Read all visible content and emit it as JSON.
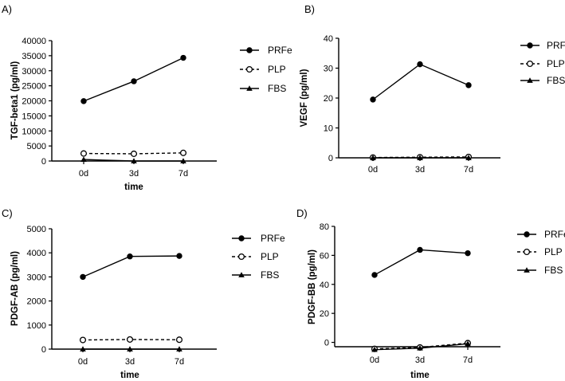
{
  "chart_data": [
    {
      "panel": "A)",
      "type": "line",
      "ylabel": "TGF-beta1 (pg/ml)",
      "xlabel": "time",
      "categories": [
        "0d",
        "3d",
        "7d"
      ],
      "ylim": [
        0,
        40000
      ],
      "yticks": [
        0,
        5000,
        10000,
        15000,
        20000,
        25000,
        30000,
        35000,
        40000
      ],
      "series": [
        {
          "name": "PRFe",
          "values": [
            19900,
            26500,
            34300
          ]
        },
        {
          "name": "PLP",
          "values": [
            2500,
            2400,
            2700
          ]
        },
        {
          "name": "FBS",
          "values": [
            500,
            0,
            0
          ]
        }
      ]
    },
    {
      "panel": "B)",
      "type": "line",
      "ylabel": "VEGF (pg/ml)",
      "xlabel": "",
      "categories": [
        "0d",
        "3d",
        "7d"
      ],
      "ylim": [
        0,
        40
      ],
      "yticks": [
        0,
        10,
        20,
        30,
        40
      ],
      "series": [
        {
          "name": "PRFe",
          "values": [
            19.5,
            31.3,
            24.3
          ]
        },
        {
          "name": "PLP",
          "values": [
            0.1,
            0.2,
            0.3
          ]
        },
        {
          "name": "FBS",
          "values": [
            0,
            0,
            0
          ]
        }
      ]
    },
    {
      "panel": "C)",
      "type": "line",
      "ylabel": "PDGF-AB (pg/ml)",
      "xlabel": "time",
      "categories": [
        "0d",
        "3d",
        "7d"
      ],
      "ylim": [
        0,
        5000
      ],
      "yticks": [
        0,
        1000,
        2000,
        3000,
        4000,
        5000
      ],
      "series": [
        {
          "name": "PRFe",
          "values": [
            3000,
            3850,
            3870
          ]
        },
        {
          "name": "PLP",
          "values": [
            380,
            400,
            390
          ]
        },
        {
          "name": "FBS",
          "values": [
            0,
            0,
            0
          ]
        }
      ]
    },
    {
      "panel": "D)",
      "type": "line",
      "ylabel": "PDGF-BB (pg/ml)",
      "xlabel": "time",
      "categories": [
        "0d",
        "3d",
        "7d"
      ],
      "ylim": [
        -3,
        80
      ],
      "yticks": [
        0,
        20,
        40,
        60,
        80
      ],
      "series": [
        {
          "name": "PRFe",
          "values": [
            46.5,
            63.8,
            61.5
          ]
        },
        {
          "name": "PLP",
          "values": [
            -4.5,
            -3.5,
            -0.5
          ]
        },
        {
          "name": "FBS",
          "values": [
            -5,
            -4,
            -1
          ]
        }
      ]
    }
  ]
}
